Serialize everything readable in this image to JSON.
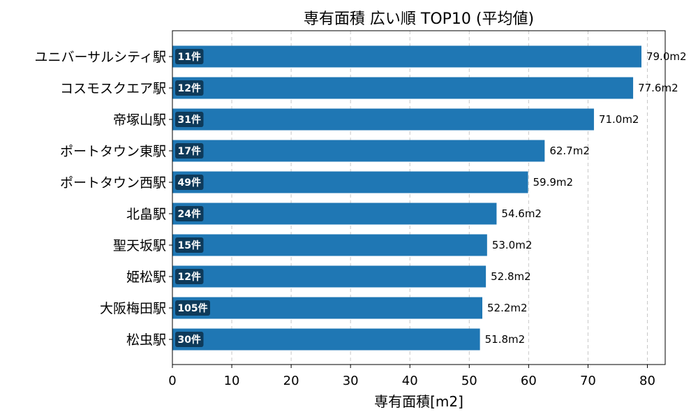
{
  "chart_data": {
    "type": "bar",
    "orientation": "horizontal",
    "title": "専有面積 広い順 TOP10 (平均値)",
    "xlabel": "専有面積[m2]",
    "ylabel": "",
    "xlim": [
      0,
      83
    ],
    "xticks": [
      0,
      10,
      20,
      30,
      40,
      50,
      60,
      70,
      80
    ],
    "grid": "vertical-dashed",
    "bar_color": "#1f77b4",
    "badge_color": "#0e3a5a",
    "categories": [
      "ユニバーサルシティ駅",
      "コスモスクエア駅",
      "帝塚山駅",
      "ポートタウン東駅",
      "ポートタウン西駅",
      "北畠駅",
      "聖天坂駅",
      "姫松駅",
      "大阪梅田駅",
      "松虫駅"
    ],
    "values": [
      79.0,
      77.6,
      71.0,
      62.7,
      59.9,
      54.6,
      53.0,
      52.8,
      52.2,
      51.8
    ],
    "value_labels": [
      "79.0m2",
      "77.6m2",
      "71.0m2",
      "62.7m2",
      "59.9m2",
      "54.6m2",
      "53.0m2",
      "52.8m2",
      "52.2m2",
      "51.8m2"
    ],
    "counts": [
      "11件",
      "12件",
      "31件",
      "17件",
      "49件",
      "24件",
      "15件",
      "12件",
      "105件",
      "30件"
    ]
  }
}
